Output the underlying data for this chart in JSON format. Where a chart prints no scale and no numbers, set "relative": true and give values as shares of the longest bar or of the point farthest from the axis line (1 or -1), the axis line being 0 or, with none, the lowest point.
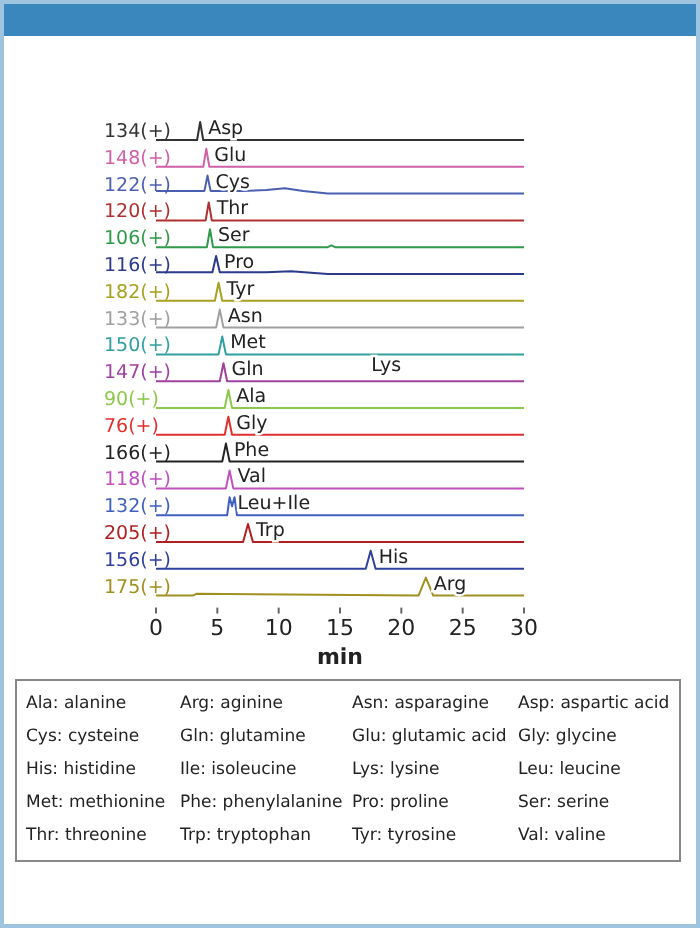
{
  "chart_data": [
    {
      "type": "line",
      "ylabel": "134(+)",
      "relative": true,
      "tick_labels": false,
      "xlim": [
        0,
        30
      ],
      "series": [
        {
          "name": "Asp",
          "color": "#333333",
          "x": [
            0,
            3.35,
            3.6,
            3.85,
            30
          ],
          "values": [
            0,
            0,
            1,
            0,
            0
          ]
        }
      ]
    },
    {
      "type": "line",
      "ylabel": "148(+)",
      "relative": true,
      "tick_labels": false,
      "xlim": [
        0,
        30
      ],
      "series": [
        {
          "name": "Glu",
          "color": "#d060a8",
          "x": [
            0,
            3.85,
            4.1,
            4.35,
            30
          ],
          "values": [
            0,
            0,
            1,
            0,
            0
          ]
        }
      ]
    },
    {
      "type": "line",
      "ylabel": "122(+)",
      "relative": true,
      "tick_labels": false,
      "xlim": [
        0,
        30
      ],
      "series": [
        {
          "name": "Cys",
          "color": "#4a5fb0",
          "x": [
            0,
            3.95,
            4.2,
            4.45,
            7,
            9,
            10.5,
            12,
            14,
            30
          ],
          "values": [
            0.15,
            0.15,
            1,
            0.15,
            0.15,
            0.2,
            0.3,
            0.15,
            0,
            0
          ]
        }
      ]
    },
    {
      "type": "line",
      "ylabel": "120(+)",
      "relative": true,
      "tick_labels": false,
      "xlim": [
        0,
        30
      ],
      "series": [
        {
          "name": "Thr",
          "color": "#b03030",
          "x": [
            0,
            4.05,
            4.3,
            4.55,
            30
          ],
          "values": [
            0,
            0,
            1,
            0,
            0
          ]
        }
      ]
    },
    {
      "type": "line",
      "ylabel": "106(+)",
      "relative": true,
      "tick_labels": false,
      "xlim": [
        0,
        30
      ],
      "series": [
        {
          "name": "Ser",
          "color": "#2e9a4a",
          "x": [
            0,
            4.15,
            4.4,
            4.65,
            14,
            14.3,
            14.6,
            30
          ],
          "values": [
            0,
            0,
            1,
            0,
            0,
            0.1,
            0,
            0
          ]
        }
      ]
    },
    {
      "type": "line",
      "ylabel": "116(+)",
      "relative": true,
      "tick_labels": false,
      "xlim": [
        0,
        30
      ],
      "series": [
        {
          "name": "Pro",
          "color": "#2c3a8c",
          "x": [
            0,
            4.6,
            4.9,
            5.2,
            9,
            11,
            14,
            30
          ],
          "values": [
            0.1,
            0.1,
            1,
            0.1,
            0.1,
            0.15,
            0,
            0
          ]
        }
      ]
    },
    {
      "type": "line",
      "ylabel": "182(+)",
      "relative": true,
      "tick_labels": false,
      "xlim": [
        0,
        30
      ],
      "series": [
        {
          "name": "Tyr",
          "color": "#a8a020",
          "x": [
            0,
            4.8,
            5.1,
            5.4,
            30
          ],
          "values": [
            0,
            0,
            1,
            0,
            0
          ]
        }
      ]
    },
    {
      "type": "line",
      "ylabel": "133(+)",
      "relative": true,
      "tick_labels": false,
      "xlim": [
        0,
        30
      ],
      "series": [
        {
          "name": "Asn",
          "color": "#a0a0a0",
          "x": [
            0,
            4.9,
            5.2,
            5.5,
            30
          ],
          "values": [
            0,
            0,
            1,
            0,
            0
          ]
        }
      ]
    },
    {
      "type": "line",
      "ylabel": "150(+)",
      "relative": true,
      "tick_labels": false,
      "xlim": [
        0,
        30
      ],
      "series": [
        {
          "name": "Met",
          "color": "#30a0a0",
          "x": [
            0,
            5.1,
            5.4,
            5.7,
            30
          ],
          "values": [
            0,
            0,
            1,
            0,
            0
          ]
        }
      ]
    },
    {
      "type": "line",
      "ylabel": "147(+)",
      "relative": true,
      "tick_labels": false,
      "xlim": [
        0,
        30
      ],
      "annotations": [
        "Lys"
      ],
      "series": [
        {
          "name": "Gln",
          "color": "#a040a0",
          "x": [
            0,
            5.2,
            5.5,
            5.8,
            30
          ],
          "values": [
            0,
            0,
            1,
            0,
            0
          ]
        }
      ]
    },
    {
      "type": "line",
      "ylabel": "90(+)",
      "relative": true,
      "tick_labels": false,
      "xlim": [
        0,
        30
      ],
      "series": [
        {
          "name": "Ala",
          "color": "#8cc84a",
          "x": [
            0,
            5.6,
            5.9,
            6.2,
            30
          ],
          "values": [
            0,
            0,
            1,
            0,
            0
          ]
        }
      ]
    },
    {
      "type": "line",
      "ylabel": "76(+)",
      "relative": true,
      "tick_labels": false,
      "xlim": [
        0,
        30
      ],
      "series": [
        {
          "name": "Gly",
          "color": "#e03030",
          "x": [
            0,
            5.6,
            5.9,
            6.2,
            30
          ],
          "values": [
            0,
            0,
            1,
            0,
            0
          ]
        }
      ]
    },
    {
      "type": "line",
      "ylabel": "166(+)",
      "relative": true,
      "tick_labels": false,
      "xlim": [
        0,
        30
      ],
      "series": [
        {
          "name": "Phe",
          "color": "#222222",
          "x": [
            0,
            5.4,
            5.7,
            6.0,
            30
          ],
          "values": [
            0,
            0,
            1,
            0,
            0
          ]
        }
      ]
    },
    {
      "type": "line",
      "ylabel": "118(+)",
      "relative": true,
      "tick_labels": false,
      "xlim": [
        0,
        30
      ],
      "series": [
        {
          "name": "Val",
          "color": "#c050c0",
          "x": [
            0,
            5.7,
            6.0,
            6.3,
            30
          ],
          "values": [
            0,
            0,
            1,
            0,
            0
          ]
        }
      ]
    },
    {
      "type": "line",
      "ylabel": "132(+)",
      "relative": true,
      "tick_labels": false,
      "xlim": [
        0,
        30
      ],
      "series": [
        {
          "name": "Leu+Ile",
          "color": "#4060c0",
          "x": [
            0,
            5.8,
            6.0,
            6.2,
            6.4,
            6.6,
            30
          ],
          "values": [
            0,
            0,
            1,
            0.5,
            1,
            0,
            0
          ]
        }
      ]
    },
    {
      "type": "line",
      "ylabel": "205(+)",
      "relative": true,
      "tick_labels": false,
      "xlim": [
        0,
        30
      ],
      "series": [
        {
          "name": "Trp",
          "color": "#b02020",
          "x": [
            0,
            7.1,
            7.5,
            7.9,
            30
          ],
          "values": [
            0,
            0,
            1,
            0,
            0
          ]
        }
      ]
    },
    {
      "type": "line",
      "ylabel": "156(+)",
      "relative": true,
      "tick_labels": false,
      "xlim": [
        0,
        30
      ],
      "series": [
        {
          "name": "His",
          "color": "#3040a0",
          "x": [
            0,
            17.1,
            17.5,
            17.9,
            30
          ],
          "values": [
            0,
            0,
            1,
            0,
            0
          ]
        }
      ]
    },
    {
      "type": "line",
      "ylabel": "175(+)",
      "relative": true,
      "tick_labels": "x",
      "xlim": [
        0,
        30
      ],
      "xticks": [
        0,
        5,
        10,
        15,
        20,
        25,
        30
      ],
      "xlabel": "min",
      "series": [
        {
          "name": "Arg",
          "color": "#a09020",
          "x": [
            0,
            3,
            3.3,
            21.4,
            22,
            22.6,
            30
          ],
          "values": [
            0,
            0,
            0.1,
            0,
            1,
            0,
            0
          ]
        }
      ]
    },
    {
      "type": "other",
      "annotations": [
        "Ala: alanine",
        "Arg: aginine",
        "Asn: asparagine",
        "Asp: aspartic acid",
        "Cys: cysteine",
        "Gln: glutamine",
        "Glu: glutamic acid",
        "Gly: glycine",
        "His: histidine",
        "Ile: isoleucine",
        "Lys: lysine",
        "Leu: leucine",
        "Met: methionine",
        "Phe: phenylalanine",
        "Pro: proline",
        "Ser: serine",
        "Thr: threonine",
        "Trp: tryptophan",
        "Tyr: tyrosine",
        "Val: valine"
      ]
    }
  ]
}
